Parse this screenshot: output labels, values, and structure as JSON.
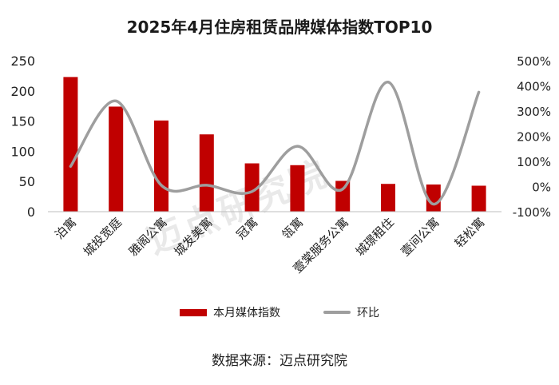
{
  "chart_data": {
    "type": "bar+line",
    "title": "2025年4月住房租赁品牌媒体指数TOP10",
    "categories": [
      "泊寓",
      "城投宽庭",
      "雅阁公寓",
      "城发美寓",
      "冠寓",
      "瓴寓",
      "壹棠服务公寓",
      "城璟租住",
      "壹间公寓",
      "轻松寓"
    ],
    "series": [
      {
        "name": "本月媒体指数",
        "type": "bar",
        "axis": "left",
        "color": "#c00000",
        "values": [
          223,
          174,
          151,
          128,
          80,
          77,
          51,
          46,
          45,
          43
        ]
      },
      {
        "name": "环比",
        "type": "line",
        "axis": "right",
        "color": "#9e9e9e",
        "unit": "%",
        "values": [
          80,
          340,
          5,
          5,
          -20,
          160,
          -10,
          415,
          -70,
          375
        ]
      }
    ],
    "ylim_left": [
      0,
      250
    ],
    "yticks_left": [
      "0",
      "50",
      "100",
      "150",
      "200",
      "250"
    ],
    "ylim_right": [
      -100,
      500
    ],
    "yticks_right": [
      "-100%",
      "0%",
      "100%",
      "200%",
      "300%",
      "400%",
      "500%"
    ],
    "legend_position": "bottom",
    "grid": false
  },
  "source_note": "数据来源：迈点研究院",
  "watermark_text": "迈点研究院"
}
